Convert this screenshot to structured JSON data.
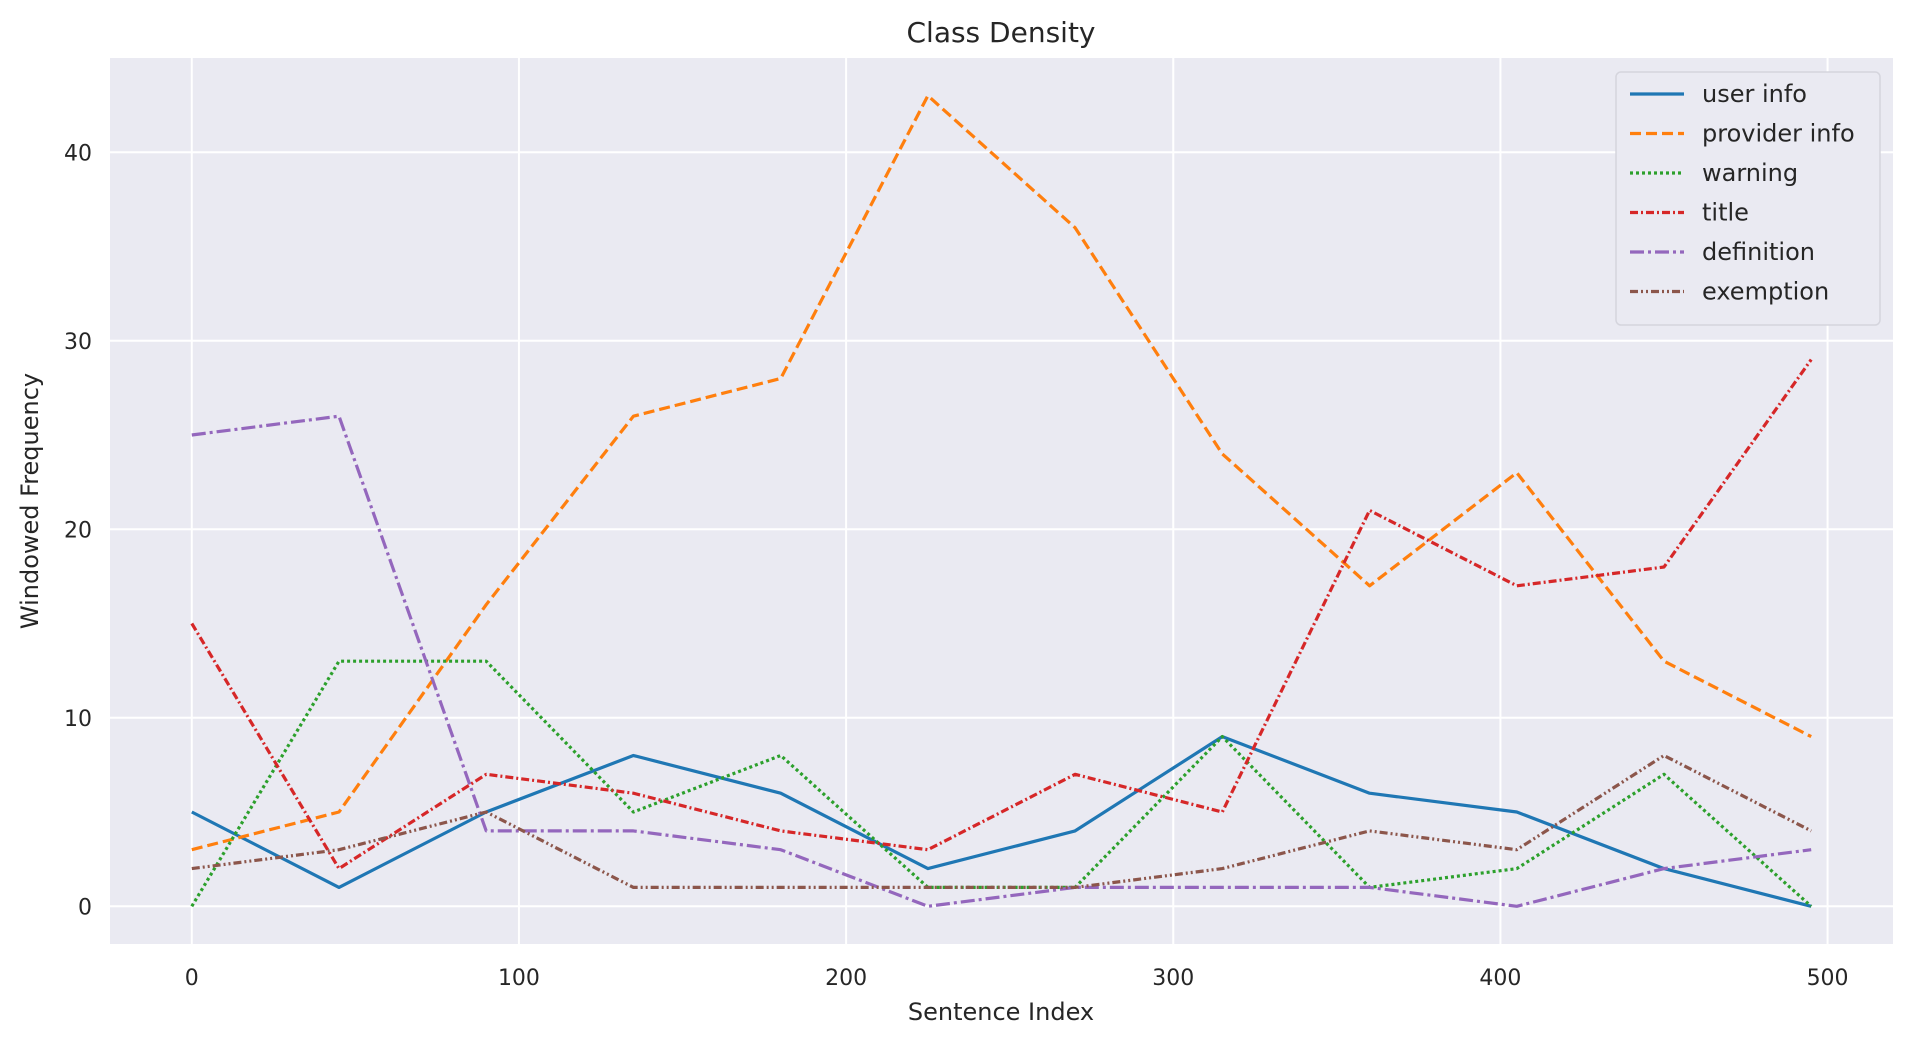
{
  "chart_data": {
    "type": "line",
    "title": "Class Density",
    "xlabel": "Sentence Index",
    "ylabel": "Windowed Frequency",
    "xlim": [
      -25,
      520
    ],
    "ylim": [
      -2,
      45
    ],
    "xticks": [
      0,
      100,
      200,
      300,
      400,
      500
    ],
    "yticks": [
      0,
      10,
      20,
      30,
      40
    ],
    "grid": true,
    "legend_position": "top-right",
    "x": [
      0,
      45,
      90,
      135,
      180,
      225,
      270,
      315,
      360,
      405,
      450,
      495
    ],
    "series": [
      {
        "name": "user info",
        "color": "#1f77b4",
        "dash": "solid",
        "values": [
          5,
          1,
          5,
          8,
          6,
          2,
          4,
          9,
          6,
          5,
          2,
          0
        ]
      },
      {
        "name": "provider info",
        "color": "#ff7f0e",
        "dash": "dashed",
        "values": [
          3,
          5,
          16,
          26,
          28,
          43,
          36,
          24,
          17,
          23,
          13,
          9
        ]
      },
      {
        "name": "warning",
        "color": "#2ca02c",
        "dash": "dotted",
        "values": [
          0,
          13,
          13,
          5,
          8,
          1,
          1,
          9,
          1,
          2,
          7,
          0
        ]
      },
      {
        "name": "title",
        "color": "#d62728",
        "dash": "dashdot-short",
        "values": [
          15,
          2,
          7,
          6,
          4,
          3,
          7,
          5,
          21,
          17,
          18,
          29
        ]
      },
      {
        "name": "definition",
        "color": "#9467bd",
        "dash": "dashdot",
        "values": [
          25,
          26,
          4,
          4,
          3,
          0,
          1,
          1,
          1,
          0,
          2,
          3
        ]
      },
      {
        "name": "exemption",
        "color": "#8c564b",
        "dash": "dashdotdot",
        "values": [
          2,
          3,
          5,
          1,
          1,
          1,
          1,
          2,
          4,
          3,
          8,
          4
        ]
      }
    ]
  }
}
